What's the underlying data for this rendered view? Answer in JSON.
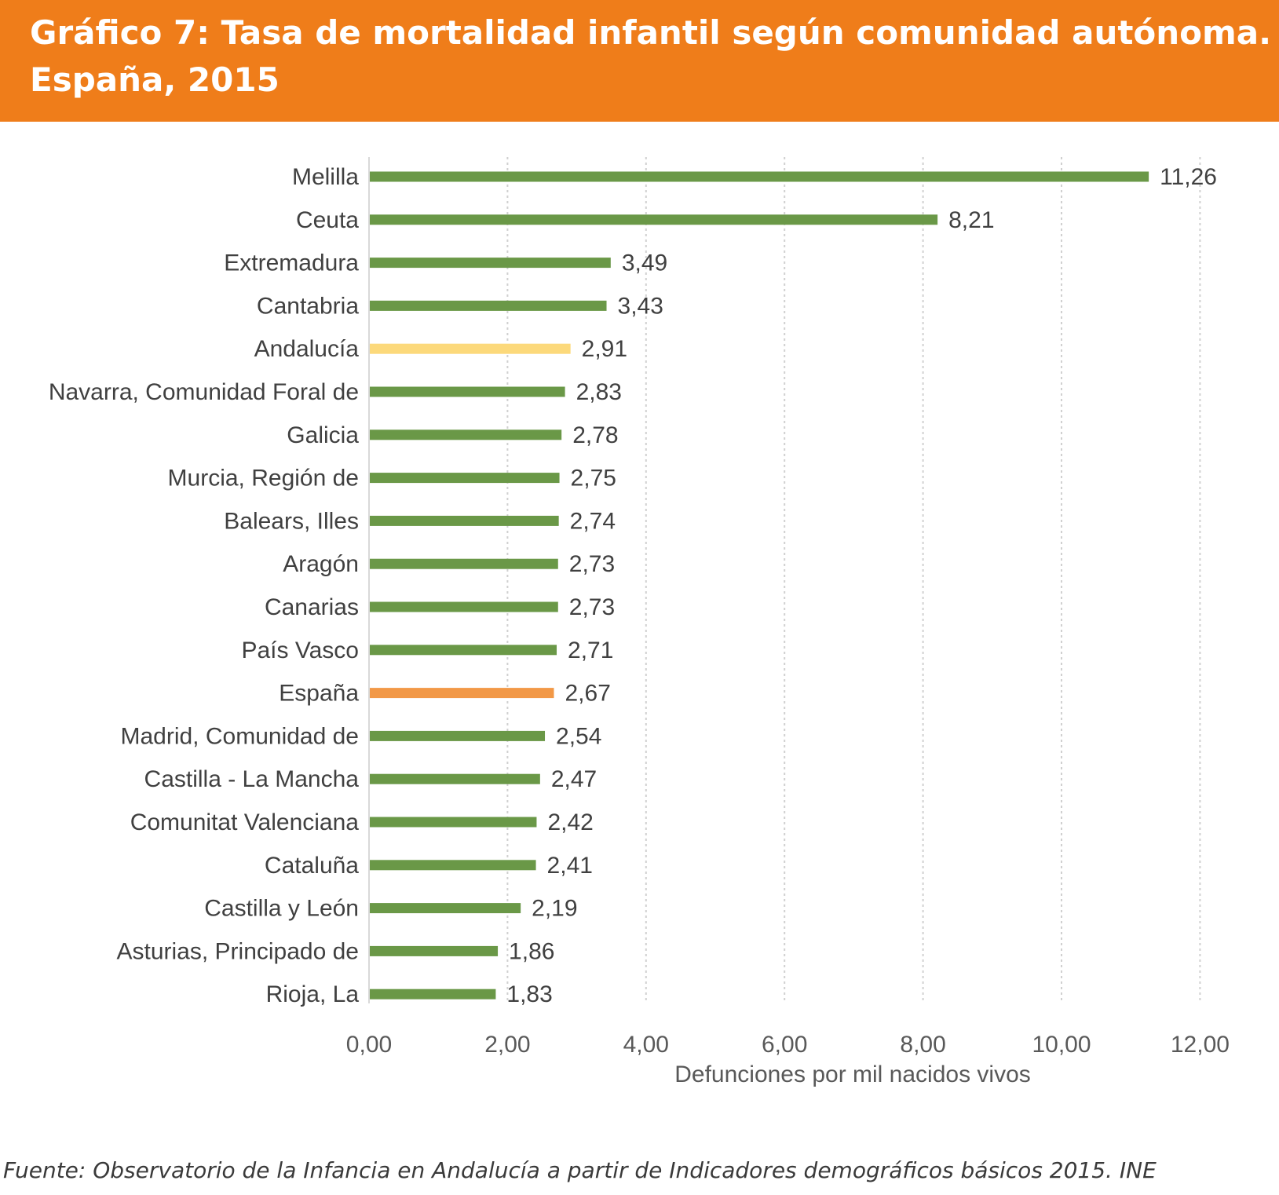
{
  "header": {
    "title_line1": "Gráfico 7: Tasa de mortalidad infantil según comunidad autónoma.",
    "title_line2": "España, 2015"
  },
  "source": "Fuente:  Observatorio de la Infancia en Andalucía a partir de Indicadores demográficos básicos 2015. INE",
  "colors": {
    "header_bg": "#ef7d1a",
    "bar_default": "#6a9847",
    "bar_andalucia": "#fcd97b",
    "bar_espana": "#f29846",
    "grid": "#d0d0d0"
  },
  "chart_data": {
    "type": "bar",
    "orientation": "horizontal",
    "categories": [
      "Melilla",
      "Ceuta",
      "Extremadura",
      "Cantabria",
      "Andalucía",
      "Navarra, Comunidad Foral de",
      "Galicia",
      "Murcia, Región de",
      "Balears, Illes",
      "Aragón",
      "Canarias",
      "País Vasco",
      "España",
      "Madrid, Comunidad de",
      "Castilla - La Mancha",
      "Comunitat Valenciana",
      "Cataluña",
      "Castilla y León",
      "Asturias, Principado de",
      "Rioja, La"
    ],
    "values": [
      11.26,
      8.21,
      3.49,
      3.43,
      2.91,
      2.83,
      2.78,
      2.75,
      2.74,
      2.73,
      2.73,
      2.71,
      2.67,
      2.54,
      2.47,
      2.42,
      2.41,
      2.19,
      1.86,
      1.83
    ],
    "value_labels": [
      "11,26",
      "8,21",
      "3,49",
      "3,43",
      "2,91",
      "2,83",
      "2,78",
      "2,75",
      "2,74",
      "2,73",
      "2,73",
      "2,71",
      "2,67",
      "2,54",
      "2,47",
      "2,42",
      "2,41",
      "2,19",
      "1,86",
      "1,83"
    ],
    "highlight": {
      "Andalucía": "#fcd97b",
      "España": "#f29846"
    },
    "xlabel": "Defunciones por mil nacidos vivos",
    "xlim": [
      0,
      12
    ],
    "xticks": [
      0,
      2,
      4,
      6,
      8,
      10,
      12
    ],
    "xtick_labels": [
      "0,00",
      "2,00",
      "4,00",
      "6,00",
      "8,00",
      "10,00",
      "12,00"
    ],
    "grid": "vertical dotted"
  }
}
